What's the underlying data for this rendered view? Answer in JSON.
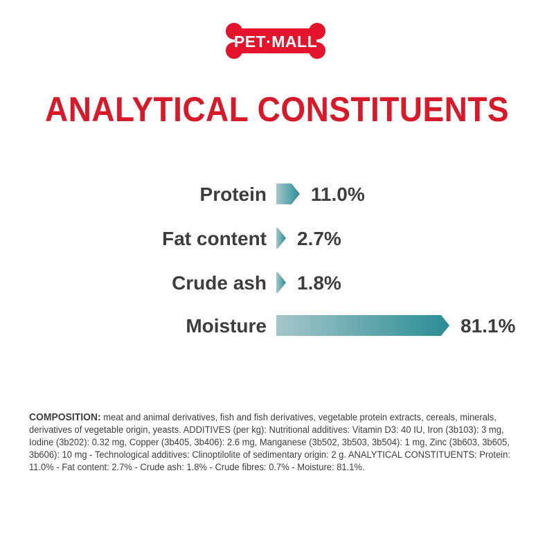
{
  "logo": {
    "text": "PET·MALL",
    "color": "#e5142d"
  },
  "title": "ANALYTICAL CONSTITUENTS",
  "chart_data": {
    "type": "bar",
    "orientation": "horizontal",
    "categories": [
      "Protein",
      "Fat content",
      "Crude ash",
      "Moisture"
    ],
    "values": [
      11.0,
      2.7,
      1.8,
      81.1
    ],
    "value_labels": [
      "11.0%",
      "2.7%",
      "1.8%",
      "81.1%"
    ],
    "unit": "%",
    "xlim": [
      0,
      81.1
    ],
    "grid": false,
    "bar_gradient": [
      "#a3c6ca",
      "#2a8d95"
    ]
  },
  "composition": {
    "heading": "COMPOSITION:",
    "text": " meat and animal derivatives, fish and fish derivatives, vegetable protein extracts, cereals, minerals, derivatives of vegetable origin, yeasts. ADDITIVES (per kg): Nutritional additives: Vitamin D3: 40 IU, Iron (3b103): 3 mg, Iodine (3b202): 0.32 mg, Copper (3b405, 3b406): 2.6 mg, Manganese (3b502, 3b503, 3b504): 1 mg, Zinc (3b603, 3b605, 3b606): 10 mg - Technological additives: Clinoptilolite of sedimentary origin: 2 g. ANALYTICAL CONSTITUENTS: Protein: 11.0% - Fat content: 2.7% - Crude ash: 1.8% - Crude fibres: 0.7% - Moisture: 81.1%."
  }
}
